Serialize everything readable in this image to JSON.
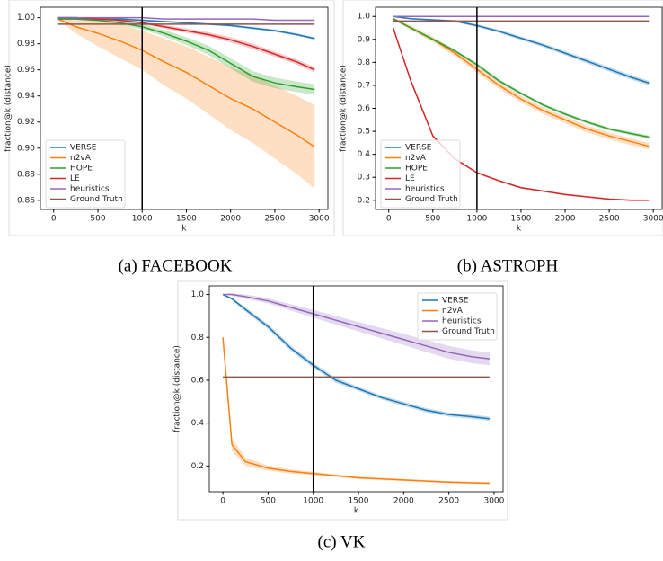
{
  "chart_data": [
    {
      "type": "line",
      "caption": "(a) FACEBOOK",
      "x_label": "k",
      "y_label": "fraction@k (distance)",
      "x": [
        50,
        250,
        500,
        750,
        1000,
        1250,
        1500,
        1750,
        2000,
        2250,
        2500,
        2750,
        2950
      ],
      "xlim": [
        -150,
        3100
      ],
      "xticks": [
        0,
        500,
        1000,
        1500,
        2000,
        2500,
        3000
      ],
      "ylim": [
        0.853,
        1.008
      ],
      "yticks": [
        0.86,
        0.88,
        {
          "value": 0.9,
          "label": "0.90"
        },
        0.92,
        0.94,
        0.96,
        0.98,
        {
          "value": 1,
          "label": "1.00"
        }
      ],
      "vline": 1000,
      "legend": "lower left",
      "series": [
        {
          "name": "VERSE",
          "color": "#1f77b4",
          "values": [
            1.0,
            1.0,
            0.999,
            0.999,
            0.998,
            0.997,
            0.996,
            0.995,
            0.994,
            0.992,
            0.99,
            0.987,
            0.984
          ],
          "error": [
            0.0003,
            0.0003,
            0.0004,
            0.0005,
            0.0006,
            0.0007,
            0.0008,
            0.0008,
            0.0009,
            0.001,
            0.001,
            0.001,
            0.001
          ]
        },
        {
          "name": "n2vA",
          "color": "#ff7f0e",
          "values": [
            0.999,
            0.993,
            0.988,
            0.982,
            0.975,
            0.966,
            0.958,
            0.948,
            0.938,
            0.93,
            0.92,
            0.91,
            0.901
          ],
          "error": [
            0.001,
            0.005,
            0.01,
            0.013,
            0.015,
            0.018,
            0.02,
            0.022,
            0.024,
            0.026,
            0.028,
            0.03,
            0.032
          ]
        },
        {
          "name": "HOPE",
          "color": "#2ca02c",
          "values": [
            0.999,
            0.999,
            0.998,
            0.996,
            0.993,
            0.988,
            0.982,
            0.975,
            0.965,
            0.955,
            0.95,
            0.947,
            0.945
          ],
          "error": [
            0.0005,
            0.0008,
            0.001,
            0.0015,
            0.002,
            0.0025,
            0.003,
            0.0035,
            0.004,
            0.004,
            0.004,
            0.004,
            0.004
          ]
        },
        {
          "name": "LE",
          "color": "#d62728",
          "values": [
            1.0,
            1.0,
            0.999,
            0.998,
            0.996,
            0.993,
            0.99,
            0.987,
            0.983,
            0.978,
            0.972,
            0.966,
            0.96
          ],
          "error": [
            0.0003,
            0.0005,
            0.0008,
            0.001,
            0.0012,
            0.0014,
            0.0016,
            0.0018,
            0.002,
            0.002,
            0.002,
            0.002,
            0.002
          ]
        },
        {
          "name": "heuristics",
          "color": "#9467bd",
          "values": [
            1.0,
            1.0,
            1.0,
            1.0,
            1.0,
            0.999,
            0.999,
            0.999,
            0.999,
            0.999,
            0.998,
            0.998,
            0.998
          ]
        },
        {
          "name": "Ground Truth",
          "color": "#8c564b",
          "values": [
            0.995,
            0.995,
            0.995,
            0.995,
            0.995,
            0.995,
            0.995,
            0.995,
            0.995,
            0.995,
            0.995,
            0.995,
            0.995
          ]
        }
      ]
    },
    {
      "type": "line",
      "caption": "(b) ASTROPH",
      "x_label": "k",
      "y_label": "fraction@k (distance)",
      "x": [
        50,
        250,
        500,
        750,
        1000,
        1250,
        1500,
        1750,
        2000,
        2250,
        2500,
        2750,
        2950
      ],
      "xlim": [
        -150,
        3100
      ],
      "xticks": [
        0,
        500,
        1000,
        1500,
        2000,
        2500,
        3000
      ],
      "ylim": [
        0.16,
        1.04
      ],
      "yticks": [
        0.2,
        0.3,
        0.4,
        0.5,
        0.6,
        0.7,
        0.8,
        0.9,
        {
          "value": 1,
          "label": "1.0"
        }
      ],
      "vline": 1000,
      "legend": "lower left",
      "series": [
        {
          "name": "VERSE",
          "color": "#1f77b4",
          "values": [
            1.0,
            0.99,
            0.985,
            0.98,
            0.96,
            0.935,
            0.905,
            0.875,
            0.84,
            0.805,
            0.77,
            0.735,
            0.71
          ],
          "error": [
            0.002,
            0.003,
            0.004,
            0.005,
            0.006,
            0.007,
            0.008,
            0.008,
            0.009,
            0.01,
            0.01,
            0.01,
            0.01
          ]
        },
        {
          "name": "n2vA",
          "color": "#ff7f0e",
          "values": [
            0.99,
            0.95,
            0.9,
            0.84,
            0.77,
            0.7,
            0.64,
            0.59,
            0.55,
            0.51,
            0.48,
            0.455,
            0.435
          ],
          "error": [
            0.005,
            0.01,
            0.012,
            0.014,
            0.015,
            0.015,
            0.015,
            0.015,
            0.015,
            0.015,
            0.015,
            0.015,
            0.015
          ]
        },
        {
          "name": "HOPE",
          "color": "#2ca02c",
          "values": [
            0.99,
            0.95,
            0.9,
            0.85,
            0.79,
            0.72,
            0.665,
            0.615,
            0.575,
            0.54,
            0.51,
            0.49,
            0.475
          ],
          "error": [
            0.003,
            0.005,
            0.006,
            0.006,
            0.007,
            0.007,
            0.007,
            0.007,
            0.007,
            0.007,
            0.007,
            0.007,
            0.007
          ]
        },
        {
          "name": "LE",
          "color": "#d62728",
          "values": [
            0.95,
            0.72,
            0.48,
            0.38,
            0.32,
            0.285,
            0.255,
            0.24,
            0.225,
            0.215,
            0.205,
            0.2,
            0.2
          ],
          "error": [
            0.005,
            0.008,
            0.006,
            0.005,
            0.004,
            0.004,
            0.004,
            0.004,
            0.004,
            0.004,
            0.004,
            0.004,
            0.004
          ]
        },
        {
          "name": "heuristics",
          "color": "#9467bd",
          "values": [
            1.0,
            1.0,
            1.0,
            1.0,
            1.0,
            1.0,
            1.0,
            1.0,
            1.0,
            1.0,
            1.0,
            1.0,
            1.0
          ]
        },
        {
          "name": "Ground Truth",
          "color": "#8c564b",
          "values": [
            0.98,
            0.98,
            0.98,
            0.98,
            0.98,
            0.98,
            0.98,
            0.98,
            0.98,
            0.98,
            0.98,
            0.98,
            0.98
          ]
        }
      ]
    },
    {
      "type": "line",
      "caption": "(c) VK",
      "x_label": "k",
      "y_label": "fraction@k (distance)",
      "x": [
        0,
        100,
        250,
        500,
        750,
        1000,
        1250,
        1500,
        1750,
        2000,
        2250,
        2500,
        2750,
        2950
      ],
      "xlim": [
        -150,
        3100
      ],
      "xticks": [
        0,
        500,
        1000,
        1500,
        2000,
        2500,
        3000
      ],
      "ylim": [
        0.08,
        1.04
      ],
      "yticks": [
        0.2,
        0.4,
        0.6,
        0.8,
        {
          "value": 1,
          "label": "1.0"
        }
      ],
      "vline": 1000,
      "legend": "upper right",
      "series": [
        {
          "name": "VERSE",
          "color": "#1f77b4",
          "values": [
            1.0,
            0.98,
            0.93,
            0.85,
            0.75,
            0.67,
            0.6,
            0.56,
            0.52,
            0.49,
            0.46,
            0.44,
            0.43,
            0.42
          ],
          "error": [
            0.003,
            0.006,
            0.01,
            0.012,
            0.012,
            0.012,
            0.012,
            0.01,
            0.01,
            0.01,
            0.01,
            0.01,
            0.01,
            0.01
          ]
        },
        {
          "name": "n2vA",
          "color": "#ff7f0e",
          "values": [
            0.8,
            0.3,
            0.22,
            0.19,
            0.175,
            0.165,
            0.155,
            0.145,
            0.14,
            0.135,
            0.13,
            0.125,
            0.122,
            0.12
          ],
          "error": [
            0.01,
            0.03,
            0.02,
            0.012,
            0.01,
            0.008,
            0.007,
            0.006,
            0.006,
            0.005,
            0.005,
            0.005,
            0.005,
            0.005
          ]
        },
        {
          "name": "heuristics",
          "color": "#9467bd",
          "values": [
            1.0,
            1.0,
            0.99,
            0.97,
            0.94,
            0.91,
            0.88,
            0.85,
            0.82,
            0.79,
            0.76,
            0.73,
            0.71,
            0.7
          ],
          "error": [
            0.002,
            0.005,
            0.01,
            0.012,
            0.015,
            0.018,
            0.02,
            0.022,
            0.024,
            0.026,
            0.028,
            0.03,
            0.03,
            0.03
          ]
        },
        {
          "name": "Ground Truth",
          "color": "#8c564b",
          "values": [
            0.615,
            0.615,
            0.615,
            0.615,
            0.615,
            0.615,
            0.615,
            0.615,
            0.615,
            0.615,
            0.615,
            0.615,
            0.615,
            0.615
          ]
        }
      ]
    }
  ]
}
